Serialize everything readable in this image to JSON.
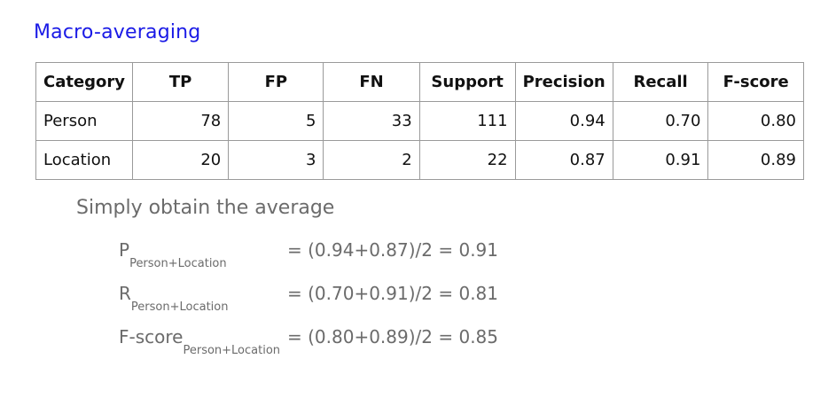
{
  "title": "Macro-averaging",
  "table": {
    "headers": [
      "Category",
      "TP",
      "FP",
      "FN",
      "Support",
      "Precision",
      "Recall",
      "F-score"
    ],
    "rows": [
      [
        "Person",
        "78",
        "5",
        "33",
        "111",
        "0.94",
        "0.70",
        "0.80"
      ],
      [
        "Location",
        "20",
        "3",
        "2",
        "22",
        "0.87",
        "0.91",
        "0.89"
      ]
    ]
  },
  "subtitle": "Simply obtain the average",
  "formulas": [
    {
      "symbol": "P",
      "subscript": "Person+Location",
      "expression": "= (0.94+0.87)/2 = 0.91"
    },
    {
      "symbol": "R",
      "subscript": "Person+Location",
      "expression": "= (0.70+0.91)/2 = 0.81"
    },
    {
      "symbol": "F-score",
      "subscript": "Person+Location",
      "expression": "= (0.80+0.89)/2 = 0.85"
    }
  ]
}
